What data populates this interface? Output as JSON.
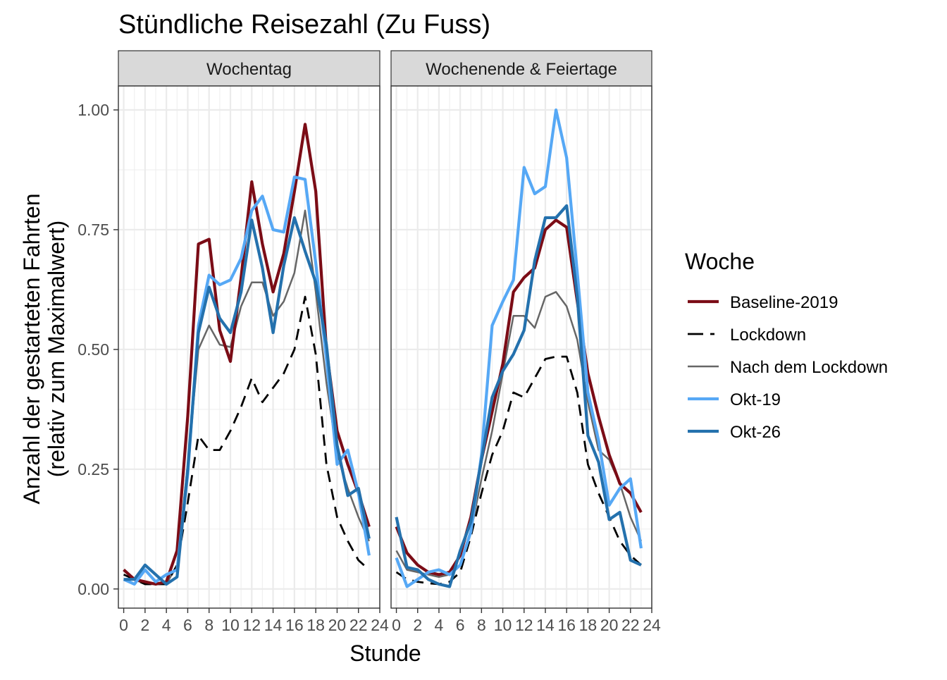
{
  "chart_data": {
    "type": "line",
    "title": "Stündliche Reisezahl (Zu Fuss)",
    "xlabel": "Stunde",
    "ylabel": [
      "Anzahl der gestarteten Fahrten",
      "(relativ zum Maximalwert)"
    ],
    "xlim": [
      -0.5,
      24
    ],
    "ylim": [
      -0.04,
      1.05
    ],
    "x_ticks": [
      0,
      2,
      4,
      6,
      8,
      10,
      12,
      14,
      16,
      18,
      20,
      22,
      24
    ],
    "y_ticks": [
      0.0,
      0.25,
      0.5,
      0.75,
      1.0
    ],
    "y_tick_labels": [
      "0.00",
      "0.25",
      "0.50",
      "0.75",
      "1.00"
    ],
    "grid": true,
    "legend": {
      "title": "Woche",
      "position": "right",
      "entries": [
        "Baseline-2019",
        "Lockdown",
        "Nach dem Lockdown",
        "Okt-19",
        "Okt-26"
      ]
    },
    "series_styles": {
      "Baseline-2019": {
        "color": "#7b0c16",
        "dash": "solid"
      },
      "Lockdown": {
        "color": "#000000",
        "dash": "dashed"
      },
      "Nach dem Lockdown": {
        "color": "#666666",
        "dash": "solid"
      },
      "Okt-19": {
        "color": "#56a8f5",
        "dash": "solid"
      },
      "Okt-26": {
        "color": "#2471ad",
        "dash": "solid"
      }
    },
    "panels": [
      {
        "label": "Wochentag",
        "x": [
          0,
          1,
          2,
          3,
          4,
          5,
          6,
          7,
          8,
          9,
          10,
          11,
          12,
          13,
          14,
          15,
          16,
          17,
          18,
          19,
          20,
          21,
          22,
          23
        ],
        "series": [
          {
            "name": "Baseline-2019",
            "values": [
              0.04,
              0.02,
              0.015,
              0.01,
              0.015,
              0.08,
              0.36,
              0.72,
              0.73,
              0.54,
              0.475,
              0.65,
              0.85,
              0.72,
              0.62,
              0.7,
              0.83,
              0.97,
              0.83,
              0.5,
              0.33,
              0.26,
              0.2,
              0.13
            ]
          },
          {
            "name": "Lockdown",
            "values": [
              0.03,
              0.02,
              0.01,
              0.01,
              0.01,
              0.05,
              0.18,
              0.32,
              0.29,
              0.29,
              0.33,
              0.38,
              0.44,
              0.39,
              0.42,
              0.45,
              0.5,
              0.61,
              0.49,
              0.26,
              0.15,
              0.1,
              0.06,
              0.04
            ]
          },
          {
            "name": "Nach dem Lockdown",
            "values": [
              0.04,
              0.02,
              0.01,
              0.01,
              0.01,
              0.05,
              0.26,
              0.5,
              0.55,
              0.51,
              0.505,
              0.59,
              0.64,
              0.64,
              0.57,
              0.6,
              0.66,
              0.79,
              0.62,
              0.43,
              0.28,
              0.21,
              0.15,
              0.1
            ]
          },
          {
            "name": "Okt-19",
            "values": [
              0.02,
              0.01,
              0.04,
              0.015,
              0.03,
              0.04,
              0.24,
              0.55,
              0.655,
              0.635,
              0.645,
              0.69,
              0.79,
              0.82,
              0.75,
              0.745,
              0.86,
              0.855,
              0.68,
              0.48,
              0.26,
              0.29,
              0.2,
              0.07
            ]
          },
          {
            "name": "Okt-26",
            "values": [
              0.02,
              0.02,
              0.05,
              0.03,
              0.01,
              0.025,
              0.25,
              0.535,
              0.63,
              0.565,
              0.535,
              0.62,
              0.77,
              0.67,
              0.535,
              0.675,
              0.775,
              0.705,
              0.64,
              0.51,
              0.3,
              0.195,
              0.21,
              0.105
            ]
          }
        ]
      },
      {
        "label": "Wochenende & Feiertage",
        "x": [
          0,
          1,
          2,
          3,
          4,
          5,
          6,
          7,
          8,
          9,
          10,
          11,
          12,
          13,
          14,
          15,
          16,
          17,
          18,
          19,
          20,
          21,
          22,
          23
        ],
        "series": [
          {
            "name": "Baseline-2019",
            "values": [
              0.13,
              0.075,
              0.05,
              0.035,
              0.03,
              0.035,
              0.07,
              0.15,
              0.27,
              0.37,
              0.47,
              0.62,
              0.65,
              0.67,
              0.75,
              0.77,
              0.755,
              0.6,
              0.45,
              0.36,
              0.28,
              0.22,
              0.2,
              0.16
            ]
          },
          {
            "name": "Lockdown",
            "values": [
              0.035,
              0.02,
              0.015,
              0.012,
              0.01,
              0.015,
              0.035,
              0.11,
              0.2,
              0.28,
              0.33,
              0.41,
              0.4,
              0.44,
              0.48,
              0.485,
              0.485,
              0.41,
              0.26,
              0.2,
              0.15,
              0.1,
              0.07,
              0.05
            ]
          },
          {
            "name": "Nach dem Lockdown",
            "values": [
              0.08,
              0.04,
              0.035,
              0.03,
              0.025,
              0.03,
              0.05,
              0.12,
              0.23,
              0.33,
              0.45,
              0.57,
              0.57,
              0.545,
              0.61,
              0.62,
              0.59,
              0.52,
              0.39,
              0.29,
              0.27,
              0.22,
              0.15,
              0.1
            ]
          },
          {
            "name": "Okt-19",
            "values": [
              0.065,
              0.005,
              0.02,
              0.035,
              0.04,
              0.03,
              0.05,
              0.12,
              0.28,
              0.55,
              0.6,
              0.645,
              0.88,
              0.825,
              0.84,
              1.0,
              0.9,
              0.66,
              0.41,
              0.31,
              0.175,
              0.21,
              0.23,
              0.085
            ]
          },
          {
            "name": "Okt-26",
            "values": [
              0.15,
              0.045,
              0.04,
              0.02,
              0.01,
              0.005,
              0.08,
              0.14,
              0.27,
              0.4,
              0.455,
              0.49,
              0.54,
              0.685,
              0.775,
              0.775,
              0.8,
              0.61,
              0.32,
              0.265,
              0.145,
              0.16,
              0.06,
              0.05
            ]
          }
        ]
      }
    ]
  }
}
